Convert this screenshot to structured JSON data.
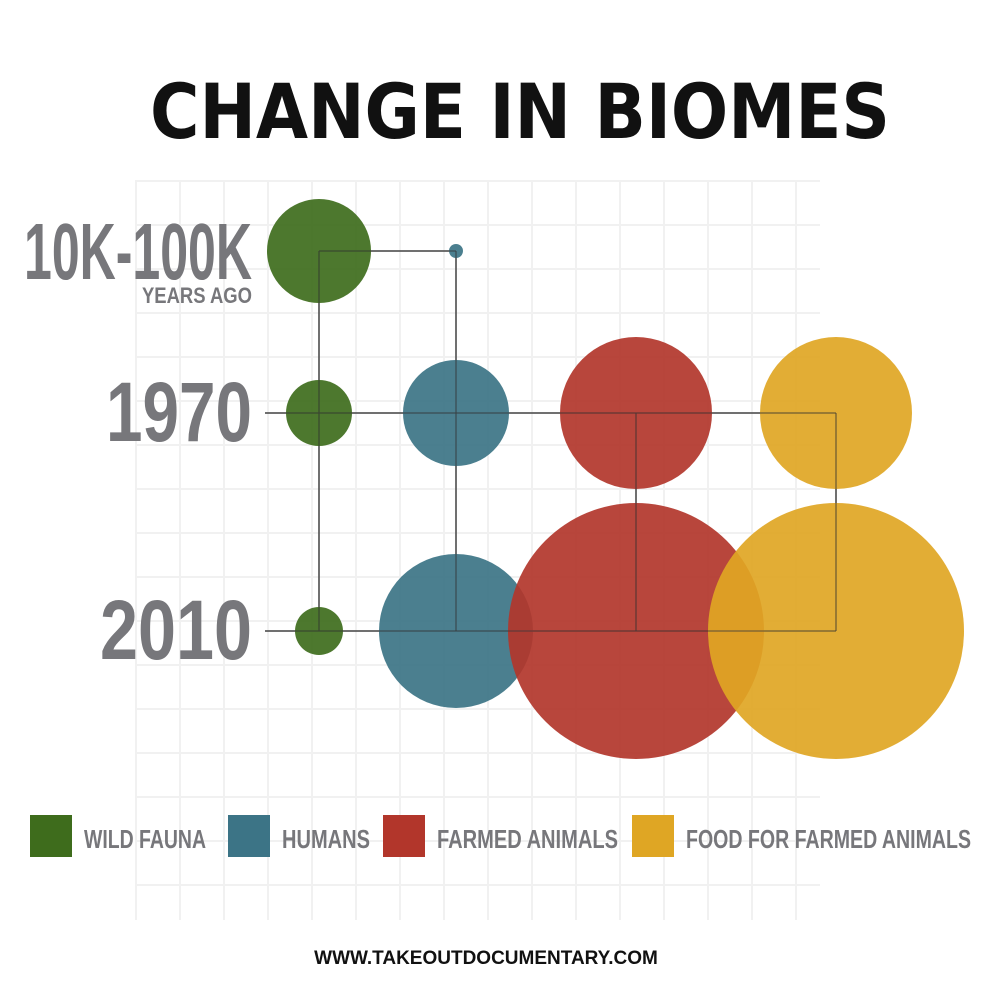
{
  "chart_data": {
    "type": "bubble",
    "title": "CHANGE IN BIOMES",
    "categories": [
      "10K-100K",
      "1970",
      "2010"
    ],
    "category_subtitle": "YEARS AGO",
    "series": [
      {
        "name": "WILD FAUNA",
        "color": "#3e6c1c",
        "values": [
          52,
          33,
          24
        ]
      },
      {
        "name": "HUMANS",
        "color": "#3c7486",
        "values": [
          7,
          53,
          77
        ]
      },
      {
        "name": "FARMED ANIMALS",
        "color": "#b2362b",
        "values": [
          null,
          76,
          128
        ]
      },
      {
        "name": "FOOD FOR FARMED ANIMALS",
        "color": "#dfa624",
        "values": [
          null,
          76,
          128
        ]
      }
    ],
    "source": "WWW.TAKEOUTDOCUMENTARY.COM"
  }
}
